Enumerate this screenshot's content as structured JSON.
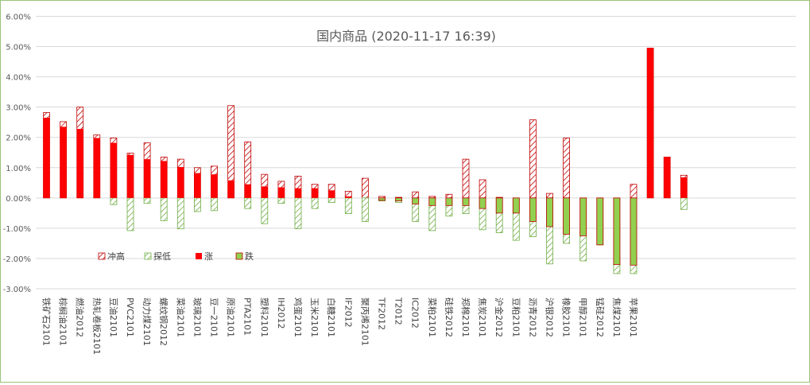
{
  "chart_data": {
    "type": "bar",
    "title": "国内商品 (2020-11-17 16:39)",
    "xlabel": "",
    "ylabel": "",
    "ylim": [
      -0.03,
      0.06
    ],
    "ytick_labels": [
      "6.00%",
      "5.00%",
      "4.00%",
      "3.00%",
      "2.00%",
      "1.00%",
      "0.00%",
      "-1.00%",
      "-2.00%",
      "-3.00%"
    ],
    "grid": true,
    "legend_position": "bottom-left",
    "colors": {
      "rise": "#ff0000",
      "fall": "#92d050",
      "fall_border": "#c00000",
      "high_hatch": "#c00000",
      "low_hatch": "#70ad47"
    },
    "legend": [
      {
        "key": "high",
        "label": "冲高"
      },
      {
        "key": "low",
        "label": "探低"
      },
      {
        "key": "rise",
        "label": "涨"
      },
      {
        "key": "fall",
        "label": "跌"
      }
    ],
    "categories": [
      "铁矿石2101",
      "棕榈油2101",
      "燃油2012",
      "热轧卷板2101",
      "豆油2101",
      "PVC2101",
      "动力煤2101",
      "螺纹钢2012",
      "菜油2101",
      "玻璃2101",
      "豆一2101",
      "原油2101",
      "PTA2101",
      "塑料2101",
      "IH2012",
      "鸡蛋2101",
      "玉米2101",
      "白糖2101",
      "IF2012",
      "聚丙烯2101",
      "TF2012",
      "T2012",
      "IC2012",
      "菜粕2101",
      "硅铁2012",
      "郑棉2101",
      "焦炭2101",
      "沪金2012",
      "豆粕2101",
      "沥青2012",
      "沪银2012",
      "橡胶2101",
      "甲醇2101",
      "锰硅2012",
      "焦煤2101",
      "苹果2101",
      "",
      "",
      ""
    ],
    "series": [
      {
        "name": "冲高",
        "values": [
          0.0282,
          0.0252,
          0.03,
          0.0208,
          0.0198,
          0.0148,
          0.0182,
          0.0135,
          0.0128,
          0.01,
          0.0105,
          0.0305,
          0.0185,
          0.0078,
          0.0055,
          0.0072,
          0.0045,
          0.0045,
          0.0022,
          0.0065,
          0.0005,
          0.0002,
          0.002,
          0.0005,
          0.0012,
          0.0128,
          0.006,
          0.0002,
          0.0,
          0.0258,
          0.0015,
          0.0198,
          0.0,
          0.0,
          0.0,
          0.0045,
          0.0495,
          0.0135,
          0.0075
        ]
      },
      {
        "name": "探低",
        "values": [
          0.0,
          0.0,
          0.0,
          0.0,
          -0.0022,
          -0.0108,
          -0.0018,
          -0.0075,
          -0.0102,
          -0.0045,
          -0.0042,
          0.0,
          -0.0035,
          -0.0085,
          -0.0018,
          -0.0102,
          -0.0035,
          -0.0015,
          -0.0052,
          -0.0078,
          -0.001,
          -0.0015,
          -0.0078,
          -0.0108,
          -0.006,
          -0.0052,
          -0.0105,
          -0.0115,
          -0.014,
          -0.0128,
          -0.0218,
          -0.015,
          -0.0208,
          -0.0155,
          -0.025,
          -0.025,
          0.0,
          0.0,
          -0.0038
        ]
      },
      {
        "name": "涨",
        "values": [
          0.0265,
          0.0235,
          0.0228,
          0.0198,
          0.0182,
          0.0142,
          0.0128,
          0.0122,
          0.0102,
          0.0082,
          0.0078,
          0.0058,
          0.0045,
          0.0038,
          0.0035,
          0.0032,
          0.0032,
          0.0025,
          0.0005,
          0.0,
          0.0,
          0.0,
          0.0,
          0.0,
          0.0,
          0.0,
          0.0,
          0.0,
          0.0,
          0.0,
          0.0,
          0.0,
          0.0,
          0.0,
          0.0,
          0.0,
          0.0495,
          0.0135,
          0.0068
        ]
      },
      {
        "name": "跌",
        "values": [
          0.0,
          0.0,
          0.0,
          0.0,
          0.0,
          0.0,
          0.0,
          0.0,
          0.0,
          0.0,
          0.0,
          0.0,
          0.0,
          0.0,
          0.0,
          0.0,
          0.0,
          0.0,
          0.0,
          0.0,
          -0.0008,
          -0.001,
          -0.002,
          -0.0025,
          -0.0025,
          -0.0025,
          -0.0035,
          -0.005,
          -0.005,
          -0.0078,
          -0.0095,
          -0.012,
          -0.0125,
          -0.0155,
          -0.022,
          -0.0222,
          0.0,
          0.0,
          0.0
        ]
      }
    ]
  }
}
